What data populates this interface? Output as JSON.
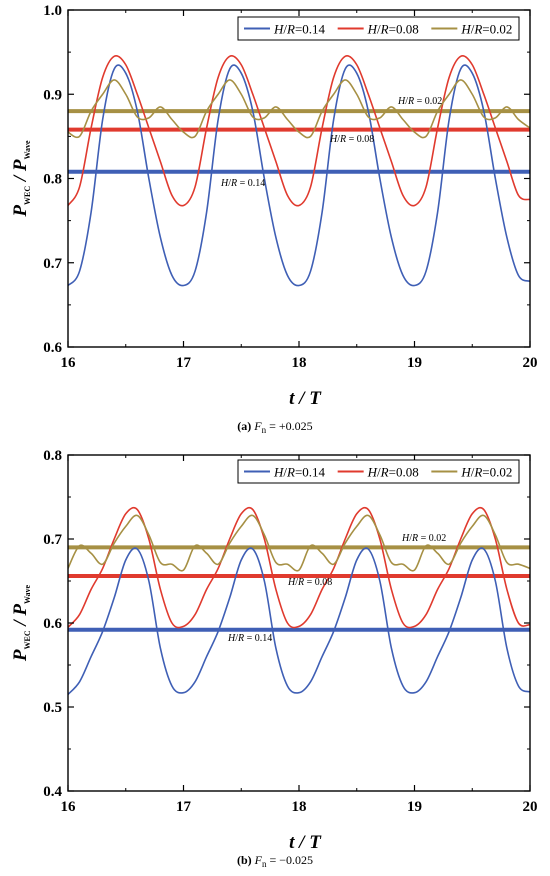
{
  "chart_data": [
    {
      "type": "line",
      "panel": "a",
      "caption_letter": "(a)",
      "caption_var": "F",
      "caption_sub": "n",
      "caption_value": "= +0.025",
      "xlabel_main": "t / T",
      "ylabel_main": "P",
      "ylabel_sub1": "WEC",
      "ylabel_mid": " / P",
      "ylabel_sub2": "Wave",
      "xlim": [
        16,
        20
      ],
      "ylim": [
        0.6,
        1.0
      ],
      "xticks": [
        "16",
        "17",
        "18",
        "19",
        "20"
      ],
      "yticks": [
        "0.6",
        "0.7",
        "0.8",
        "0.9",
        "1.0"
      ],
      "legend_position": "top-right",
      "series": [
        {
          "name": "H/R=0.14",
          "color": "#3f5fb5",
          "mean": 0.808,
          "mean_label": "H/R = 0.14",
          "x": [
            16.0,
            16.1,
            16.2,
            16.3,
            16.4,
            16.5,
            16.6,
            16.7,
            16.8,
            16.9,
            17.0,
            17.1,
            17.2,
            17.3,
            17.4,
            17.5,
            17.6,
            17.7,
            17.8,
            17.9,
            18.0,
            18.1,
            18.2,
            18.3,
            18.4,
            18.5,
            18.6,
            18.7,
            18.8,
            18.9,
            19.0,
            19.1,
            19.2,
            19.3,
            19.4,
            19.5,
            19.6,
            19.7,
            19.8,
            19.9,
            20.0
          ],
          "y": [
            0.673,
            0.69,
            0.76,
            0.87,
            0.93,
            0.925,
            0.88,
            0.8,
            0.73,
            0.685,
            0.673,
            0.69,
            0.76,
            0.87,
            0.93,
            0.925,
            0.88,
            0.8,
            0.73,
            0.685,
            0.673,
            0.69,
            0.76,
            0.87,
            0.93,
            0.925,
            0.88,
            0.8,
            0.73,
            0.685,
            0.673,
            0.69,
            0.76,
            0.87,
            0.93,
            0.925,
            0.88,
            0.8,
            0.73,
            0.685,
            0.678
          ]
        },
        {
          "name": "H/R=0.08",
          "color": "#e03a2e",
          "mean": 0.858,
          "mean_label": "H/R = 0.08",
          "x": [
            16.0,
            16.1,
            16.2,
            16.3,
            16.4,
            16.5,
            16.6,
            16.7,
            16.8,
            16.9,
            17.0,
            17.1,
            17.2,
            17.3,
            17.4,
            17.5,
            17.6,
            17.7,
            17.8,
            17.9,
            18.0,
            18.1,
            18.2,
            18.3,
            18.4,
            18.5,
            18.6,
            18.7,
            18.8,
            18.9,
            19.0,
            19.1,
            19.2,
            19.3,
            19.4,
            19.5,
            19.6,
            19.7,
            19.8,
            19.9,
            20.0
          ],
          "y": [
            0.768,
            0.79,
            0.86,
            0.92,
            0.945,
            0.935,
            0.9,
            0.86,
            0.82,
            0.78,
            0.768,
            0.79,
            0.86,
            0.92,
            0.945,
            0.935,
            0.9,
            0.86,
            0.82,
            0.78,
            0.768,
            0.79,
            0.86,
            0.92,
            0.945,
            0.935,
            0.9,
            0.86,
            0.82,
            0.78,
            0.768,
            0.79,
            0.86,
            0.92,
            0.945,
            0.935,
            0.9,
            0.86,
            0.82,
            0.78,
            0.775
          ]
        },
        {
          "name": "H/R=0.02",
          "color": "#a69044",
          "mean": 0.88,
          "mean_label": "H/R = 0.02",
          "x": [
            16.0,
            16.1,
            16.2,
            16.3,
            16.4,
            16.5,
            16.6,
            16.7,
            16.8,
            16.9,
            17.0,
            17.1,
            17.2,
            17.3,
            17.4,
            17.5,
            17.6,
            17.7,
            17.8,
            17.9,
            18.0,
            18.1,
            18.2,
            18.3,
            18.4,
            18.5,
            18.6,
            18.7,
            18.8,
            18.9,
            19.0,
            19.1,
            19.2,
            19.3,
            19.4,
            19.5,
            19.6,
            19.7,
            19.8,
            19.9,
            20.0
          ],
          "y": [
            0.855,
            0.85,
            0.88,
            0.9,
            0.917,
            0.9,
            0.873,
            0.872,
            0.885,
            0.87,
            0.855,
            0.85,
            0.88,
            0.9,
            0.917,
            0.9,
            0.873,
            0.872,
            0.885,
            0.87,
            0.855,
            0.85,
            0.88,
            0.9,
            0.917,
            0.9,
            0.873,
            0.872,
            0.885,
            0.87,
            0.855,
            0.85,
            0.88,
            0.9,
            0.917,
            0.9,
            0.873,
            0.872,
            0.885,
            0.87,
            0.86
          ]
        }
      ]
    },
    {
      "type": "line",
      "panel": "b",
      "caption_letter": "(b)",
      "caption_var": "F",
      "caption_sub": "n",
      "caption_value": "= −0.025",
      "xlabel_main": "t / T",
      "ylabel_main": "P",
      "ylabel_sub1": "WEC",
      "ylabel_mid": " / P",
      "ylabel_sub2": "Wave",
      "xlim": [
        16,
        20
      ],
      "ylim": [
        0.4,
        0.8
      ],
      "xticks": [
        "16",
        "17",
        "18",
        "19",
        "20"
      ],
      "yticks": [
        "0.4",
        "0.5",
        "0.6",
        "0.7",
        "0.8"
      ],
      "legend_position": "top-right",
      "series": [
        {
          "name": "H/R=0.14",
          "color": "#3f5fb5",
          "mean": 0.592,
          "mean_label": "H/R = 0.14",
          "x": [
            16.0,
            16.1,
            16.2,
            16.3,
            16.4,
            16.5,
            16.6,
            16.7,
            16.8,
            16.9,
            17.0,
            17.1,
            17.2,
            17.3,
            17.4,
            17.5,
            17.6,
            17.7,
            17.8,
            17.9,
            18.0,
            18.1,
            18.2,
            18.3,
            18.4,
            18.5,
            18.6,
            18.7,
            18.8,
            18.9,
            19.0,
            19.1,
            19.2,
            19.3,
            19.4,
            19.5,
            19.6,
            19.7,
            19.8,
            19.9,
            20.0
          ],
          "y": [
            0.515,
            0.53,
            0.56,
            0.59,
            0.63,
            0.675,
            0.688,
            0.65,
            0.57,
            0.525,
            0.517,
            0.53,
            0.56,
            0.59,
            0.63,
            0.675,
            0.688,
            0.65,
            0.57,
            0.525,
            0.517,
            0.53,
            0.56,
            0.59,
            0.63,
            0.675,
            0.688,
            0.65,
            0.57,
            0.525,
            0.517,
            0.53,
            0.56,
            0.59,
            0.63,
            0.675,
            0.688,
            0.65,
            0.57,
            0.525,
            0.518
          ]
        },
        {
          "name": "H/R=0.08",
          "color": "#e03a2e",
          "mean": 0.656,
          "mean_label": "H/R = 0.08",
          "x": [
            16.0,
            16.1,
            16.2,
            16.3,
            16.4,
            16.5,
            16.6,
            16.7,
            16.8,
            16.9,
            17.0,
            17.1,
            17.2,
            17.3,
            17.4,
            17.5,
            17.6,
            17.7,
            17.8,
            17.9,
            18.0,
            18.1,
            18.2,
            18.3,
            18.4,
            18.5,
            18.6,
            18.7,
            18.8,
            18.9,
            19.0,
            19.1,
            19.2,
            19.3,
            19.4,
            19.5,
            19.6,
            19.7,
            19.8,
            19.9,
            20.0
          ],
          "y": [
            0.595,
            0.61,
            0.64,
            0.665,
            0.7,
            0.73,
            0.735,
            0.7,
            0.64,
            0.6,
            0.596,
            0.61,
            0.64,
            0.665,
            0.7,
            0.73,
            0.735,
            0.7,
            0.64,
            0.6,
            0.596,
            0.61,
            0.64,
            0.665,
            0.7,
            0.73,
            0.735,
            0.7,
            0.64,
            0.6,
            0.596,
            0.61,
            0.64,
            0.665,
            0.7,
            0.73,
            0.735,
            0.7,
            0.64,
            0.6,
            0.598
          ]
        },
        {
          "name": "H/R=0.02",
          "color": "#a69044",
          "mean": 0.69,
          "mean_label": "H/R = 0.02",
          "x": [
            16.0,
            16.1,
            16.2,
            16.3,
            16.4,
            16.5,
            16.6,
            16.7,
            16.8,
            16.9,
            17.0,
            17.1,
            17.2,
            17.3,
            17.4,
            17.5,
            17.6,
            17.7,
            17.8,
            17.9,
            18.0,
            18.1,
            18.2,
            18.3,
            18.4,
            18.5,
            18.6,
            18.7,
            18.8,
            18.9,
            19.0,
            19.1,
            19.2,
            19.3,
            19.4,
            19.5,
            19.6,
            19.7,
            19.8,
            19.9,
            20.0
          ],
          "y": [
            0.665,
            0.692,
            0.683,
            0.67,
            0.695,
            0.715,
            0.728,
            0.705,
            0.672,
            0.67,
            0.663,
            0.692,
            0.683,
            0.67,
            0.695,
            0.715,
            0.728,
            0.705,
            0.672,
            0.67,
            0.663,
            0.692,
            0.683,
            0.67,
            0.695,
            0.715,
            0.728,
            0.705,
            0.672,
            0.67,
            0.663,
            0.692,
            0.683,
            0.67,
            0.695,
            0.715,
            0.728,
            0.705,
            0.672,
            0.67,
            0.665
          ]
        }
      ]
    }
  ]
}
